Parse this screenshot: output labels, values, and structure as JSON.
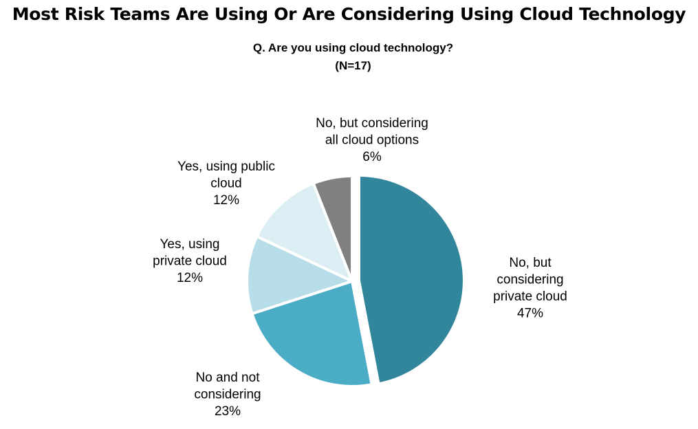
{
  "title": "Most Risk Teams Are Using Or Are Considering Using Cloud Technology",
  "chart_data": {
    "type": "pie",
    "title": "Q. Are you using cloud technology?",
    "subtitle": "(N=17)",
    "slices": [
      {
        "label_lines": [
          "No, but",
          "considering",
          "private cloud"
        ],
        "percent_label": "47%",
        "value": 47,
        "color": "#31869b",
        "exploded": true
      },
      {
        "label_lines": [
          "No and not",
          "considering"
        ],
        "percent_label": "23%",
        "value": 23,
        "color": "#4bacc6",
        "exploded": false
      },
      {
        "label_lines": [
          "Yes, using",
          "private cloud"
        ],
        "percent_label": "12%",
        "value": 12,
        "color": "#b7dde8",
        "exploded": false
      },
      {
        "label_lines": [
          "Yes, using public",
          "cloud"
        ],
        "percent_label": "12%",
        "value": 12,
        "color": "#daeef3",
        "exploded": false
      },
      {
        "label_lines": [
          "No, but considering",
          "all cloud options"
        ],
        "percent_label": "6%",
        "value": 6,
        "color": "#808080",
        "exploded": false
      }
    ],
    "legend": "none"
  }
}
